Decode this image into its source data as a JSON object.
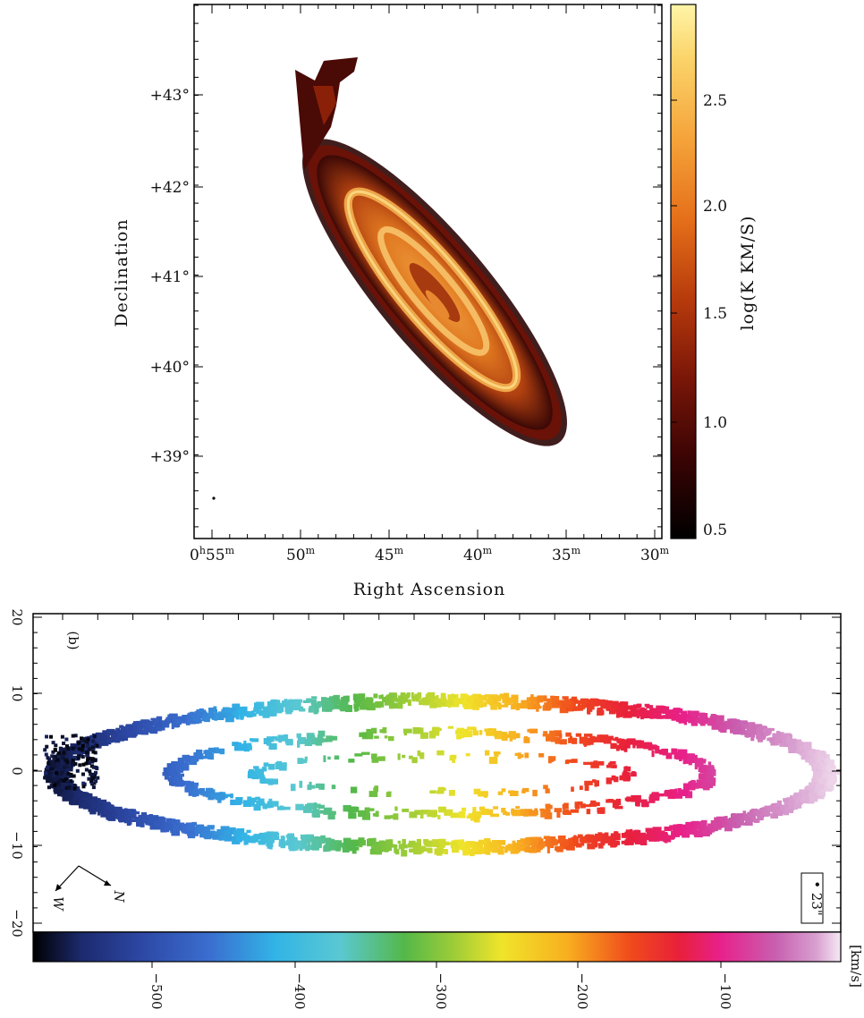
{
  "chart_data": [
    {
      "type": "heatmap",
      "xlabel": "Right Ascension",
      "ylabel": "Declination",
      "x_ticks": [
        {
          "hour": "0",
          "min": "55"
        },
        {
          "hour": "",
          "min": "50"
        },
        {
          "hour": "",
          "min": "45"
        },
        {
          "hour": "",
          "min": "40"
        },
        {
          "hour": "",
          "min": "35"
        },
        {
          "hour": "",
          "min": "30"
        }
      ],
      "y_ticks": [
        "+43°",
        "+42°",
        "+41°",
        "+40°",
        "+39°"
      ],
      "colorbar": {
        "label": "log(K KM/S)",
        "ticks": [
          "2.5",
          "2.0",
          "1.5",
          "1.0",
          "0.5"
        ],
        "range": [
          0.4,
          2.9
        ],
        "colormap": [
          "#000000",
          "#3a0404",
          "#7a1608",
          "#b83b0c",
          "#e6701a",
          "#f5a43a",
          "#fbd46a",
          "#fff5a8"
        ]
      },
      "grid": false
    },
    {
      "type": "heatmap",
      "panel_label": "(b)",
      "x_range": [
        -23,
        23
      ],
      "y_range": [
        -22,
        20
      ],
      "y_ticks": [
        "20",
        "10",
        "0",
        "−10",
        "−20"
      ],
      "beam_label": "• 23\"",
      "compass": {
        "north": "N",
        "west": "W"
      },
      "colorbar": {
        "label": "[km/s]",
        "ticks": [
          "−500",
          "−400",
          "−300",
          "−200",
          "−100"
        ],
        "range": [
          -580,
          -10
        ],
        "colormap": [
          "#000000",
          "#1c2a6e",
          "#2e4aa8",
          "#3a6fd0",
          "#32b4e6",
          "#5ac8d2",
          "#54b848",
          "#9ccc38",
          "#f0e42a",
          "#f8b020",
          "#f04a1c",
          "#e8203a",
          "#e8208a",
          "#c860b0",
          "#d8a0d0",
          "#f6eaf4"
        ]
      },
      "grid": false
    }
  ]
}
